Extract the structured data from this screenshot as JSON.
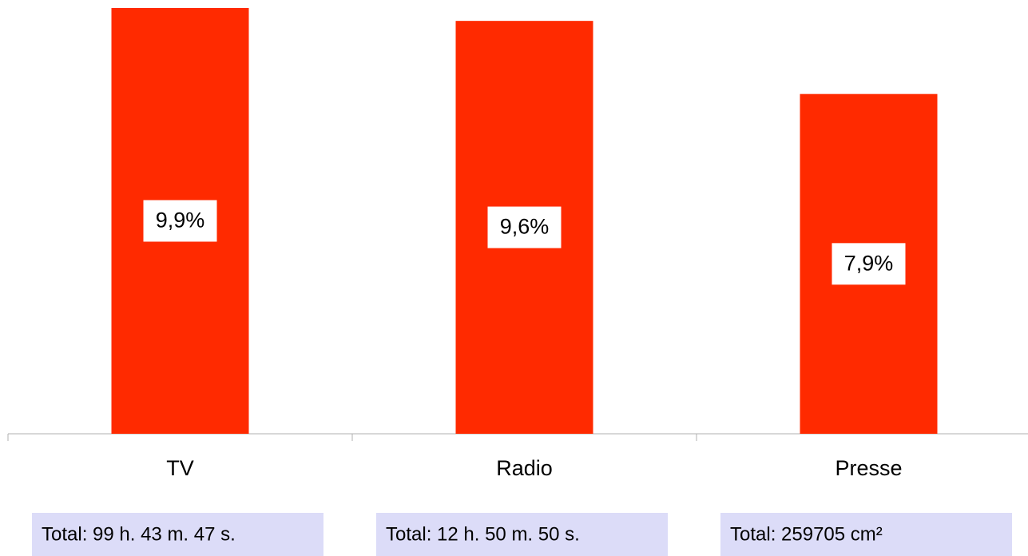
{
  "chart_data": {
    "type": "bar",
    "categories": [
      "TV",
      "Radio",
      "Presse"
    ],
    "values": [
      9.9,
      9.6,
      7.9
    ],
    "value_labels": [
      "9,9%",
      "9,6%",
      "7,9%"
    ],
    "color": "#ff2a00",
    "footnotes": [
      "Total: 99 h. 43 m. 47 s.",
      "Total: 12 h. 50 m. 50 s.",
      "Total: 259705 cm²"
    ],
    "footnote_color": "#dcdcf8"
  }
}
